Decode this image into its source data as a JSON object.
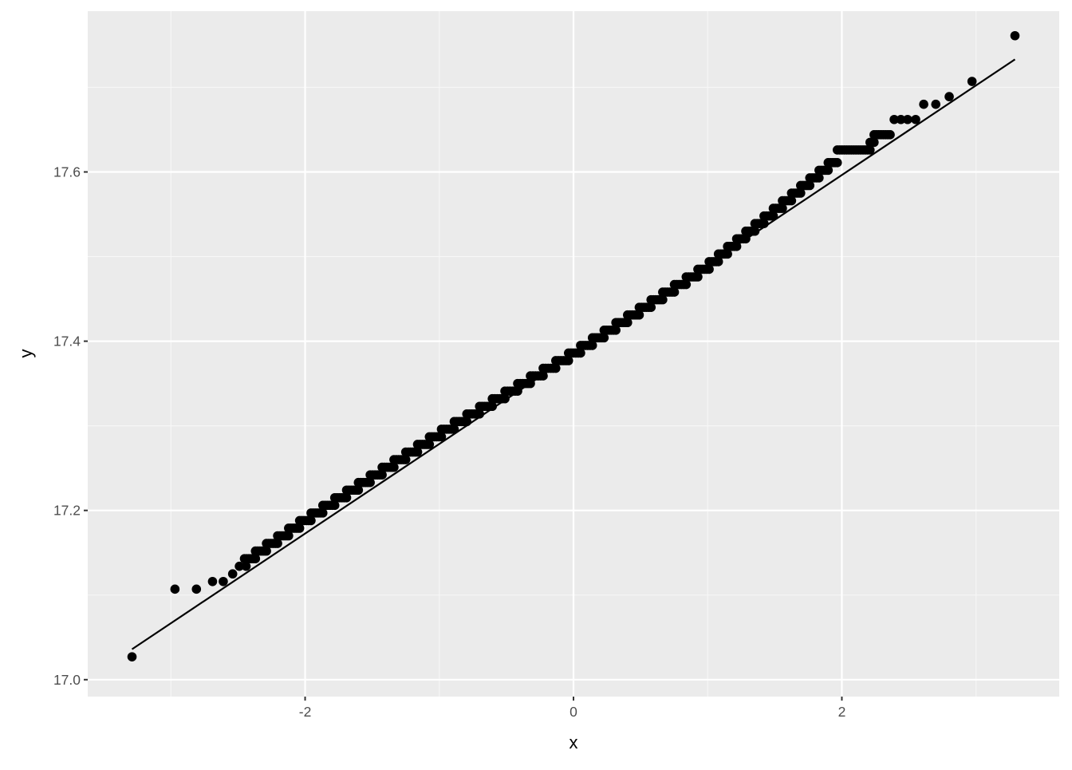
{
  "chart_data": {
    "type": "scatter",
    "subtype": "qq-plot",
    "title": "",
    "xlabel": "x",
    "ylabel": "y",
    "xlim": [
      -3.62,
      3.62
    ],
    "ylim": [
      16.98,
      17.79
    ],
    "x_ticks": [
      -2,
      0,
      2
    ],
    "x_tick_labels": [
      "-2",
      "0",
      "2"
    ],
    "y_ticks": [
      17.0,
      17.2,
      17.4,
      17.6
    ],
    "y_tick_labels": [
      "17.0",
      "17.2",
      "17.4",
      "17.6"
    ],
    "x_minor": [
      -3,
      -1,
      1,
      3
    ],
    "y_minor": [
      17.1,
      17.3,
      17.5,
      17.7
    ],
    "grid": true,
    "legend": "none",
    "colors": {
      "panel": "#EBEBEB",
      "grid": "#FFFFFF",
      "points": "#000000",
      "line": "#000000",
      "tick_text": "#4D4D4D"
    },
    "reference_line": {
      "x": [
        -3.29,
        3.29
      ],
      "y": [
        17.036,
        17.733
      ]
    },
    "points": [
      [
        -3.29,
        17.027
      ],
      [
        -2.97,
        17.107
      ],
      [
        -2.81,
        17.107
      ],
      [
        -2.69,
        17.116
      ],
      [
        -2.61,
        17.116
      ],
      [
        -2.54,
        17.125
      ],
      [
        -2.49,
        17.134
      ],
      [
        -2.44,
        17.134
      ],
      [
        2.39,
        17.662
      ],
      [
        2.44,
        17.662
      ],
      [
        2.49,
        17.662
      ],
      [
        2.55,
        17.662
      ],
      [
        2.61,
        17.68
      ],
      [
        2.7,
        17.68
      ],
      [
        2.8,
        17.689
      ],
      [
        2.97,
        17.707
      ],
      [
        3.29,
        17.761
      ]
    ],
    "runs_columns": [
      "y",
      "x_from",
      "x_to"
    ],
    "runs": [
      [
        17.143,
        -2.452,
        -2.37
      ],
      [
        17.152,
        -2.37,
        -2.288
      ],
      [
        17.161,
        -2.288,
        -2.205
      ],
      [
        17.17,
        -2.205,
        -2.123
      ],
      [
        17.179,
        -2.123,
        -2.041
      ],
      [
        17.188,
        -2.041,
        -1.956
      ],
      [
        17.197,
        -1.956,
        -1.868
      ],
      [
        17.206,
        -1.868,
        -1.779
      ],
      [
        17.215,
        -1.779,
        -1.691
      ],
      [
        17.224,
        -1.691,
        -1.603
      ],
      [
        17.233,
        -1.603,
        -1.515
      ],
      [
        17.242,
        -1.515,
        -1.426
      ],
      [
        17.251,
        -1.426,
        -1.338
      ],
      [
        17.26,
        -1.338,
        -1.25
      ],
      [
        17.269,
        -1.25,
        -1.162
      ],
      [
        17.278,
        -1.162,
        -1.074
      ],
      [
        17.287,
        -1.074,
        -0.984
      ],
      [
        17.296,
        -0.984,
        -0.889
      ],
      [
        17.305,
        -0.889,
        -0.795
      ],
      [
        17.314,
        -0.795,
        -0.7
      ],
      [
        17.323,
        -0.7,
        -0.605
      ],
      [
        17.332,
        -0.605,
        -0.511
      ],
      [
        17.341,
        -0.511,
        -0.416
      ],
      [
        17.35,
        -0.416,
        -0.321
      ],
      [
        17.359,
        -0.321,
        -0.226
      ],
      [
        17.368,
        -0.226,
        -0.132
      ],
      [
        17.377,
        -0.132,
        -0.037
      ],
      [
        17.386,
        -0.037,
        0.053
      ],
      [
        17.395,
        0.053,
        0.141
      ],
      [
        17.404,
        0.141,
        0.228
      ],
      [
        17.413,
        0.228,
        0.316
      ],
      [
        17.422,
        0.316,
        0.403
      ],
      [
        17.431,
        0.403,
        0.49
      ],
      [
        17.44,
        0.49,
        0.578
      ],
      [
        17.449,
        0.578,
        0.665
      ],
      [
        17.458,
        0.665,
        0.752
      ],
      [
        17.467,
        0.752,
        0.84
      ],
      [
        17.476,
        0.84,
        0.927
      ],
      [
        17.485,
        0.927,
        1.011
      ],
      [
        17.494,
        1.011,
        1.08
      ],
      [
        17.503,
        1.08,
        1.148
      ],
      [
        17.512,
        1.148,
        1.216
      ],
      [
        17.521,
        1.216,
        1.284
      ],
      [
        17.53,
        1.284,
        1.352
      ],
      [
        17.539,
        1.352,
        1.42
      ],
      [
        17.548,
        1.42,
        1.489
      ],
      [
        17.557,
        1.489,
        1.557
      ],
      [
        17.566,
        1.557,
        1.625
      ],
      [
        17.575,
        1.625,
        1.693
      ],
      [
        17.584,
        1.693,
        1.761
      ],
      [
        17.593,
        1.761,
        1.83
      ],
      [
        17.602,
        1.83,
        1.898
      ],
      [
        17.611,
        1.898,
        1.966
      ],
      [
        17.626,
        1.966,
        2.21
      ],
      [
        17.635,
        2.21,
        2.24
      ],
      [
        17.644,
        2.24,
        2.36
      ]
    ]
  }
}
